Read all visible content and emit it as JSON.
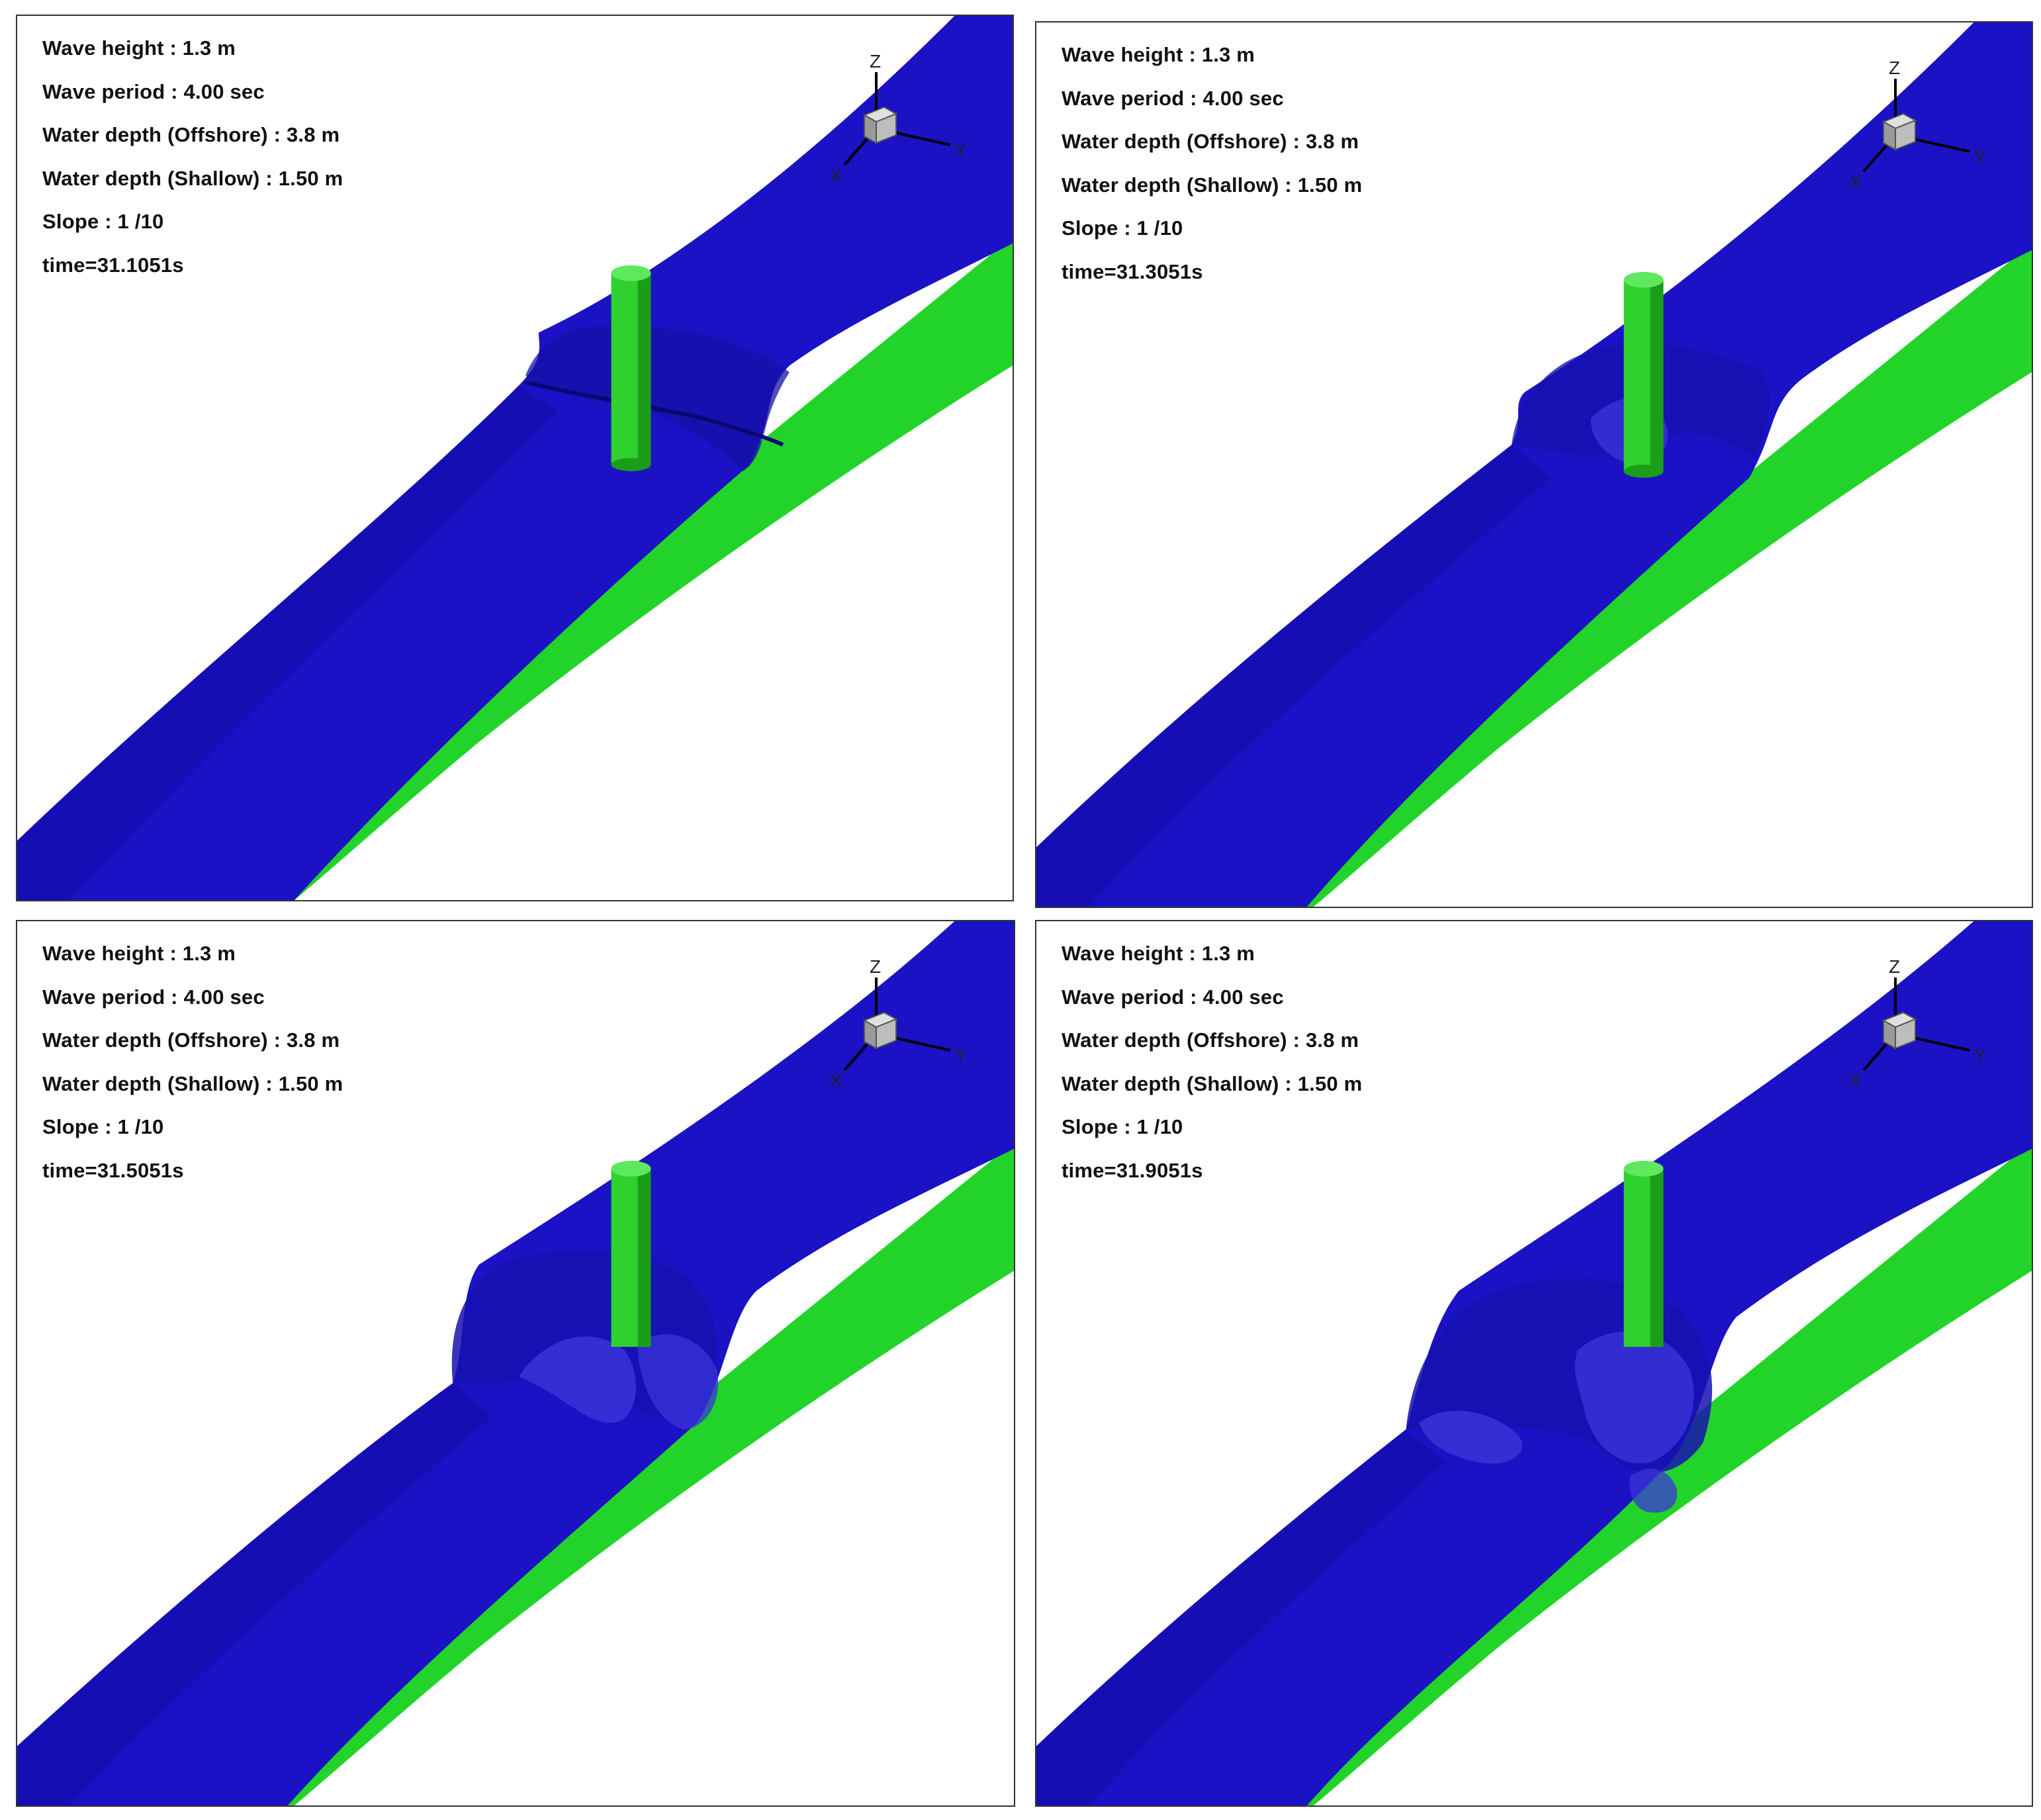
{
  "panels": [
    {
      "params": {
        "wave_height": "Wave height : 1.3 m",
        "wave_period": "Wave period : 4.00 sec",
        "depth_offshore": "Water depth (Offshore) : 3.8 m",
        "depth_shallow": "Water depth (Shallow)  : 1.50 m",
        "slope": "Slope : 1 /10",
        "time": "time=31.1051s"
      }
    },
    {
      "params": {
        "wave_height": "Wave height : 1.3 m",
        "wave_period": "Wave period : 4.00 sec",
        "depth_offshore": "Water depth (Offshore) : 3.8 m",
        "depth_shallow": "Water depth (Shallow)  : 1.50 m",
        "slope": "Slope : 1 /10",
        "time": "time=31.3051s"
      }
    },
    {
      "params": {
        "wave_height": "Wave height : 1.3 m",
        "wave_period": "Wave period : 4.00 sec",
        "depth_offshore": "Water depth (Offshore) : 3.8 m",
        "depth_shallow": "Water depth (Shallow)  : 1.50 m",
        "slope": "Slope : 1 /10",
        "time": "time=31.5051s"
      }
    },
    {
      "params": {
        "wave_height": "Wave height : 1.3 m",
        "wave_period": "Wave period : 4.00 sec",
        "depth_offshore": "Water depth (Offshore) : 3.8 m",
        "depth_shallow": "Water depth (Shallow)  : 1.50 m",
        "slope": "Slope : 1 /10",
        "time": "time=31.9051s"
      }
    }
  ],
  "axes": {
    "z": "Z",
    "y": "Y",
    "x": "X"
  },
  "colors": {
    "water": "#1a12c4",
    "water_dark": "#0d0a9a",
    "seabed": "#22d42a",
    "pile": "#2fd12f",
    "pile_shade": "#1a9e1a"
  },
  "icons": {
    "axis_cube": "axis-orientation-cube-icon"
  }
}
